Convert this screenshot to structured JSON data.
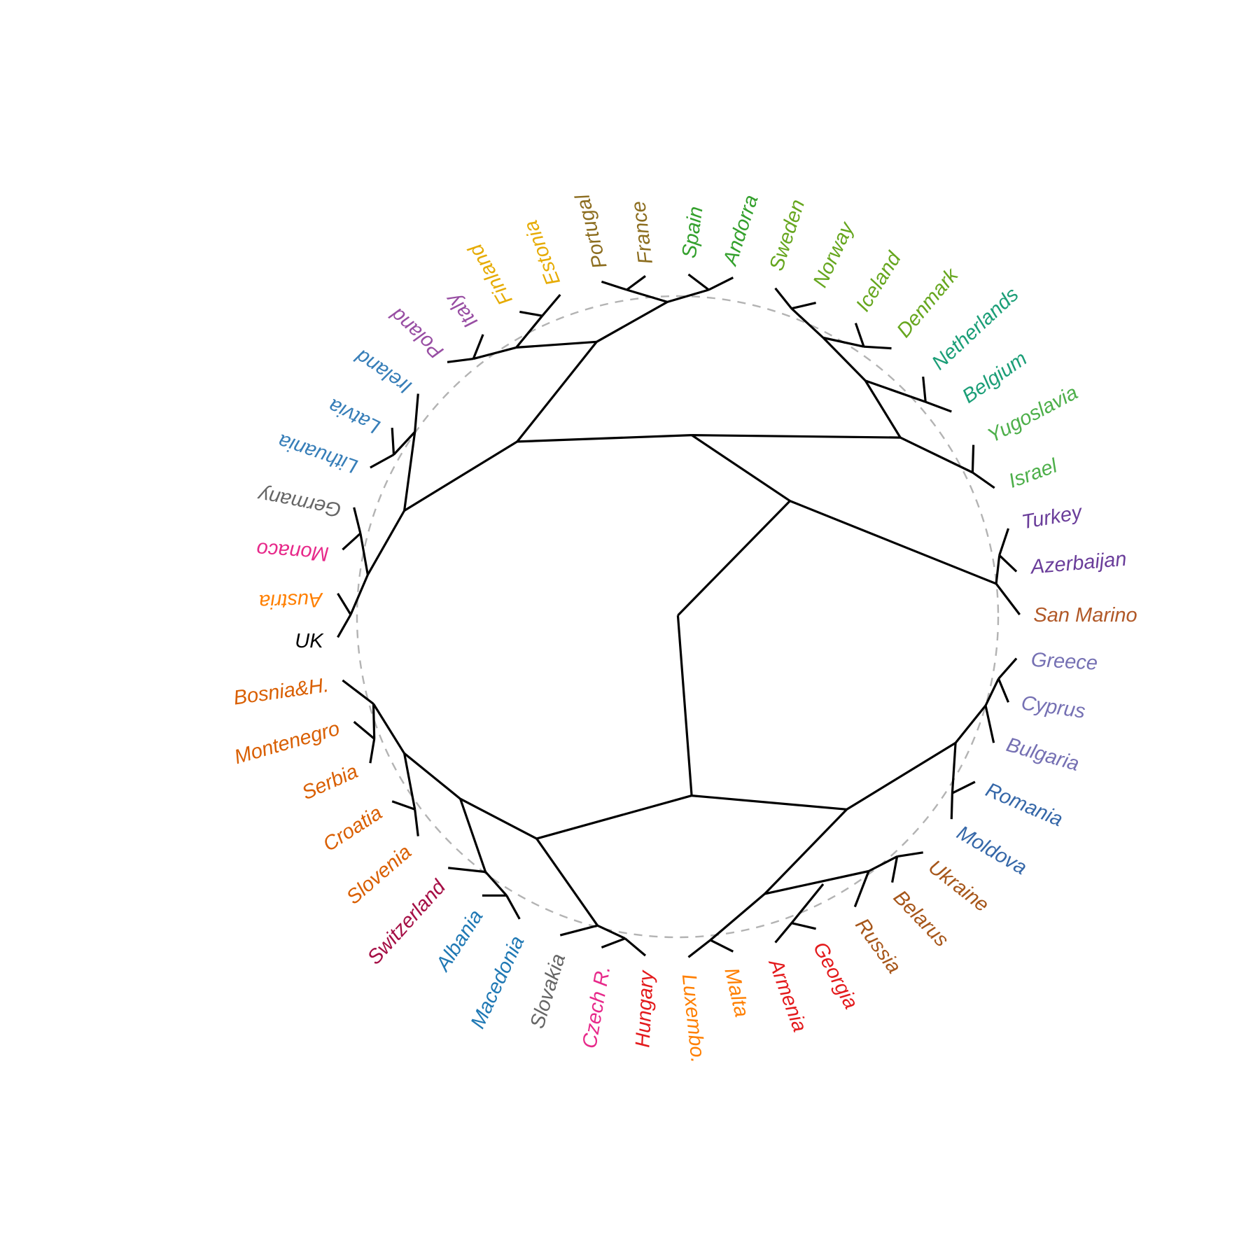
{
  "tree": {
    "leaves": [
      {
        "label": "Andorra",
        "color": "#33a02c"
      },
      {
        "label": "Spain",
        "color": "#33a02c"
      },
      {
        "label": "France",
        "color": "#8c6d1f"
      },
      {
        "label": "Portugal",
        "color": "#8c6d1f"
      },
      {
        "label": "Estonia",
        "color": "#e6ab02"
      },
      {
        "label": "Finland",
        "color": "#e6ab02"
      },
      {
        "label": "Italy",
        "color": "#984ea3"
      },
      {
        "label": "Poland",
        "color": "#984ea3"
      },
      {
        "label": "Ireland",
        "color": "#377eb8"
      },
      {
        "label": "Latvia",
        "color": "#377eb8"
      },
      {
        "label": "Lithuania",
        "color": "#377eb8"
      },
      {
        "label": "Germany",
        "color": "#666666"
      },
      {
        "label": "Monaco",
        "color": "#e7298a"
      },
      {
        "label": "Austria",
        "color": "#ff7f00"
      },
      {
        "label": "UK",
        "color": "#000000"
      },
      {
        "label": "Bosnia&H.",
        "color": "#d95f02"
      },
      {
        "label": "Montenegro",
        "color": "#d95f02"
      },
      {
        "label": "Serbia",
        "color": "#d95f02"
      },
      {
        "label": "Croatia",
        "color": "#d95f02"
      },
      {
        "label": "Slovenia",
        "color": "#d95f02"
      },
      {
        "label": "Switzerland",
        "color": "#a50f45"
      },
      {
        "label": "Albania",
        "color": "#1f78b4"
      },
      {
        "label": "Macedonia",
        "color": "#1f78b4"
      },
      {
        "label": "Slovakia",
        "color": "#666666"
      },
      {
        "label": "Czech R.",
        "color": "#e7298a"
      },
      {
        "label": "Hungary",
        "color": "#e31a1c"
      },
      {
        "label": "Luxembo.",
        "color": "#ff7f00"
      },
      {
        "label": "Malta",
        "color": "#ff7f00"
      },
      {
        "label": "Armenia",
        "color": "#e31a1c"
      },
      {
        "label": "Georgia",
        "color": "#e31a1c"
      },
      {
        "label": "Russia",
        "color": "#a6561a"
      },
      {
        "label": "Belarus",
        "color": "#a6561a"
      },
      {
        "label": "Ukraine",
        "color": "#a6561a"
      },
      {
        "label": "Moldova",
        "color": "#3567a8"
      },
      {
        "label": "Romania",
        "color": "#3567a8"
      },
      {
        "label": "Bulgaria",
        "color": "#7570b3"
      },
      {
        "label": "Cyprus",
        "color": "#7570b3"
      },
      {
        "label": "Greece",
        "color": "#7570b3"
      },
      {
        "label": "San Marino",
        "color": "#b15928"
      },
      {
        "label": "Azerbaijan",
        "color": "#6a3d9a"
      },
      {
        "label": "Turkey",
        "color": "#6a3d9a"
      },
      {
        "label": "Israel",
        "color": "#4daf4a"
      },
      {
        "label": "Yugoslavia",
        "color": "#4daf4a"
      },
      {
        "label": "Belgium",
        "color": "#1b9e77"
      },
      {
        "label": "Netherlands",
        "color": "#1b9e77"
      },
      {
        "label": "Denmark",
        "color": "#66a61e"
      },
      {
        "label": "Iceland",
        "color": "#66a61e"
      },
      {
        "label": "Norway",
        "color": "#66a61e"
      },
      {
        "label": "Sweden",
        "color": "#66a61e"
      }
    ]
  }
}
